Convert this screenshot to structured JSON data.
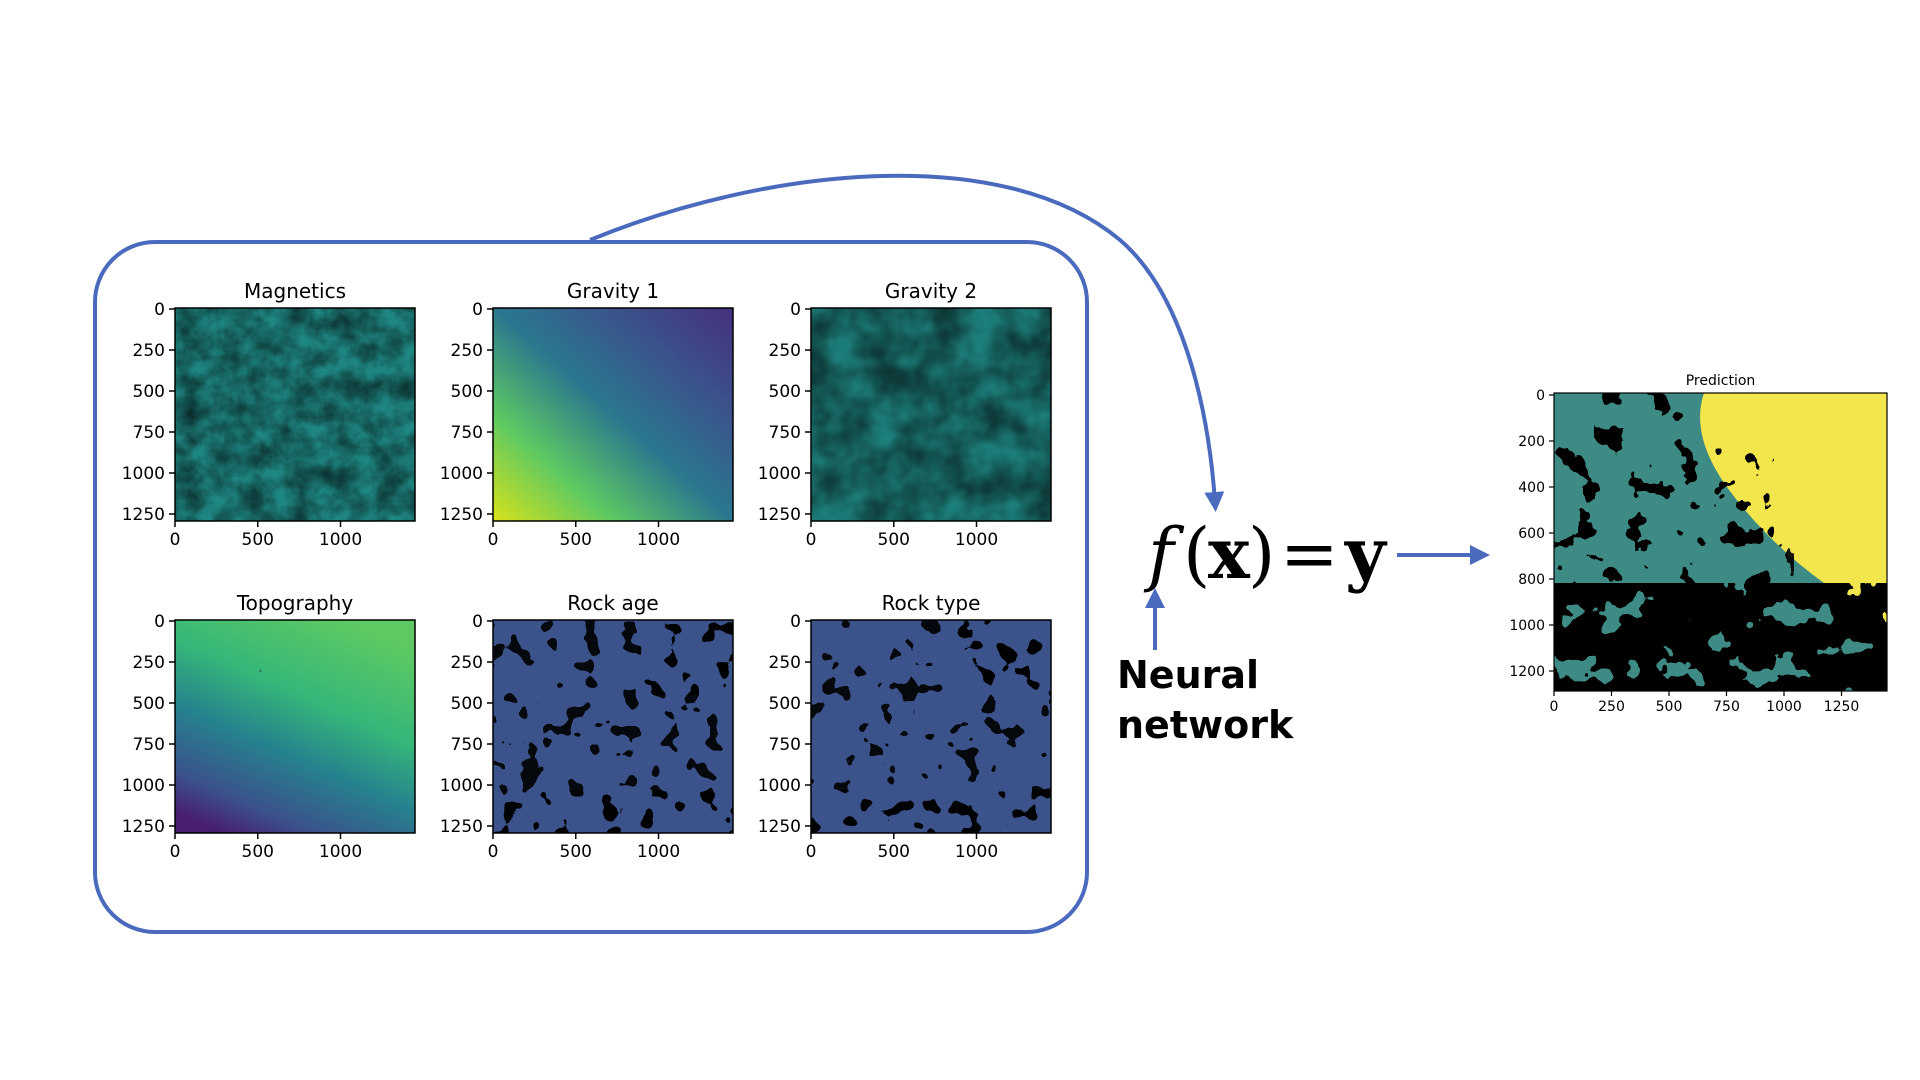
{
  "colors": {
    "arrow": "#4a6bbd",
    "viridis_dark": "#440154",
    "viridis_blue": "#3b528b",
    "viridis_teal": "#21918c",
    "viridis_green": "#5ec962",
    "viridis_yellow": "#fde725",
    "prediction_teal": "#3e8a85",
    "prediction_dark": "#44124f",
    "prediction_yellow": "#f3e54c"
  },
  "inputs": {
    "panels": [
      {
        "title": "Magnetics",
        "style": "speckled-green"
      },
      {
        "title": "Gravity 1",
        "style": "smooth-gradient"
      },
      {
        "title": "Gravity 2",
        "style": "blotchy-green"
      },
      {
        "title": "Topography",
        "style": "terrain"
      },
      {
        "title": "Rock age",
        "style": "categorical"
      },
      {
        "title": "Rock type",
        "style": "categorical"
      }
    ],
    "y_ticks": [
      "0",
      "250",
      "500",
      "750",
      "1000",
      "1250"
    ],
    "x_ticks": [
      "0",
      "500",
      "1000"
    ]
  },
  "equation": {
    "f": "f",
    "open_paren": "(",
    "x": "x",
    "close_paren": ")",
    "equals": "=",
    "y": "y"
  },
  "network_label": {
    "line1": "Neural",
    "line2": "network"
  },
  "prediction": {
    "title": "Prediction",
    "y_ticks": [
      "0",
      "200",
      "400",
      "600",
      "800",
      "1000",
      "1200"
    ],
    "x_ticks": [
      "0",
      "250",
      "500",
      "750",
      "1000",
      "1250"
    ]
  }
}
